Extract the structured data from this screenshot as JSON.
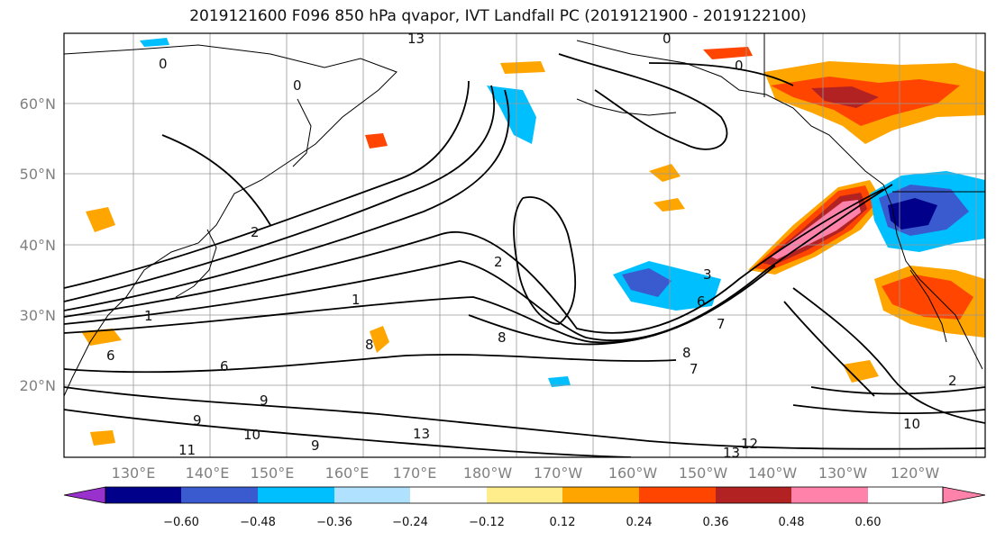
{
  "title": "2019121600 F096 850 hPa qvapor, IVT Landfall PC (2019121900 - 2019122100)",
  "lat_ticks": [
    "20°N",
    "30°N",
    "40°N",
    "50°N",
    "60°N"
  ],
  "lon_ticks": [
    "130°E",
    "140°E",
    "150°E",
    "160°E",
    "170°E",
    "180°W",
    "170°W",
    "160°W",
    "150°W",
    "140°W",
    "130°W",
    "120°W"
  ],
  "colorbar": {
    "tick_labels": [
      "−0.60",
      "−0.48",
      "−0.36",
      "−0.24",
      "−0.12",
      "0.12",
      "0.24",
      "0.36",
      "0.48",
      "0.60"
    ],
    "colors": [
      "#9932cc",
      "#00008b",
      "#3a5bd0",
      "#00bfff",
      "#b0e2ff",
      "#ffffff",
      "#ffec8b",
      "#ffa500",
      "#ff4500",
      "#b22222",
      "#ff82ab",
      "#ff82ab"
    ]
  },
  "contour_labels": [
    "0",
    "13",
    "0",
    "0",
    "0",
    "2",
    "1",
    "1",
    "2",
    "6",
    "9",
    "9",
    "10",
    "8",
    "9",
    "11",
    "13",
    "8",
    "7",
    "3",
    "6",
    "8",
    "7",
    "12",
    "13",
    "10",
    "2",
    "6"
  ]
}
